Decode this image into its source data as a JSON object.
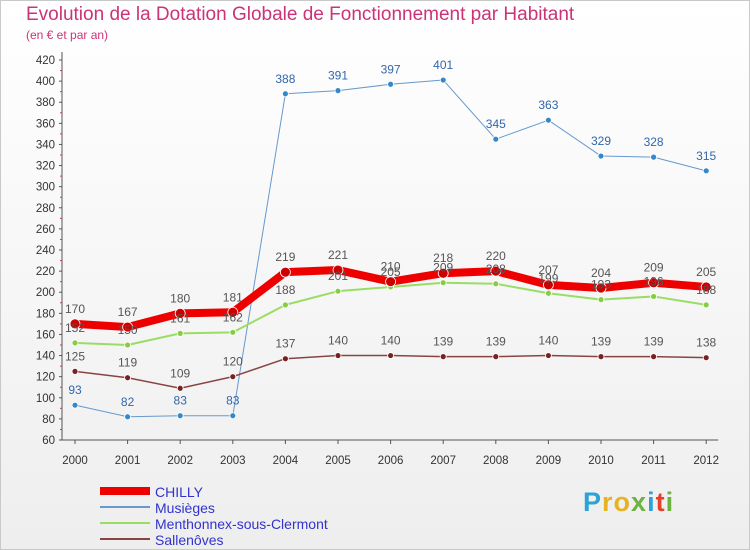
{
  "header": {
    "title": "Evolution de la Dotation Globale de Fonctionnement par Habitant",
    "subtitle": "(en € et par an)"
  },
  "logo": {
    "text": "Proxiti",
    "colors": [
      "#2aa4d6",
      "#e5b422",
      "#e5b422",
      "#6cb33f",
      "#2aa4d6",
      "#e5412a",
      "#6cb33f"
    ]
  },
  "chart_data": {
    "type": "line",
    "title": "Evolution de la Dotation Globale de Fonctionnement par Habitant",
    "subtitle": "(en € et par an)",
    "x": [
      "2000",
      "2001",
      "2002",
      "2003",
      "2004",
      "2005",
      "2006",
      "2007",
      "2008",
      "2009",
      "2010",
      "2011",
      "2012"
    ],
    "ylim": [
      60,
      420
    ],
    "yticks": [
      60,
      80,
      100,
      120,
      140,
      160,
      180,
      200,
      220,
      240,
      260,
      280,
      300,
      320,
      340,
      360,
      380,
      400,
      420
    ],
    "grid": false,
    "legend_position": "bottom-left",
    "series": [
      {
        "name": "Musièges",
        "color": "#6699cc",
        "marker": "#3388cc",
        "width": 1,
        "label_color": "#3366aa",
        "values": [
          93,
          82,
          83,
          83,
          388,
          391,
          397,
          401,
          345,
          363,
          329,
          328,
          315
        ]
      },
      {
        "name": "Menthonnex-sous-Clermont",
        "color": "#99dd66",
        "marker": "#88cc44",
        "width": 2,
        "label_color": "#555555",
        "values": [
          152,
          150,
          161,
          162,
          188,
          201,
          205,
          209,
          208,
          199,
          193,
          196,
          188
        ]
      },
      {
        "name": "Sallenôves",
        "color": "#884444",
        "marker": "#772222",
        "width": 1.5,
        "label_color": "#555555",
        "values": [
          125,
          119,
          109,
          120,
          137,
          140,
          140,
          139,
          139,
          140,
          139,
          139,
          138
        ]
      },
      {
        "name": "CHILLY",
        "color": "#ee0000",
        "marker": "#cc0000",
        "width": 8,
        "label_color": "#555555",
        "values": [
          170,
          167,
          180,
          181,
          219,
          221,
          210,
          218,
          220,
          207,
          204,
          209,
          205
        ]
      }
    ],
    "legend_order": [
      "CHILLY",
      "Musièges",
      "Menthonnex-sous-Clermont",
      "Sallenôves"
    ]
  }
}
